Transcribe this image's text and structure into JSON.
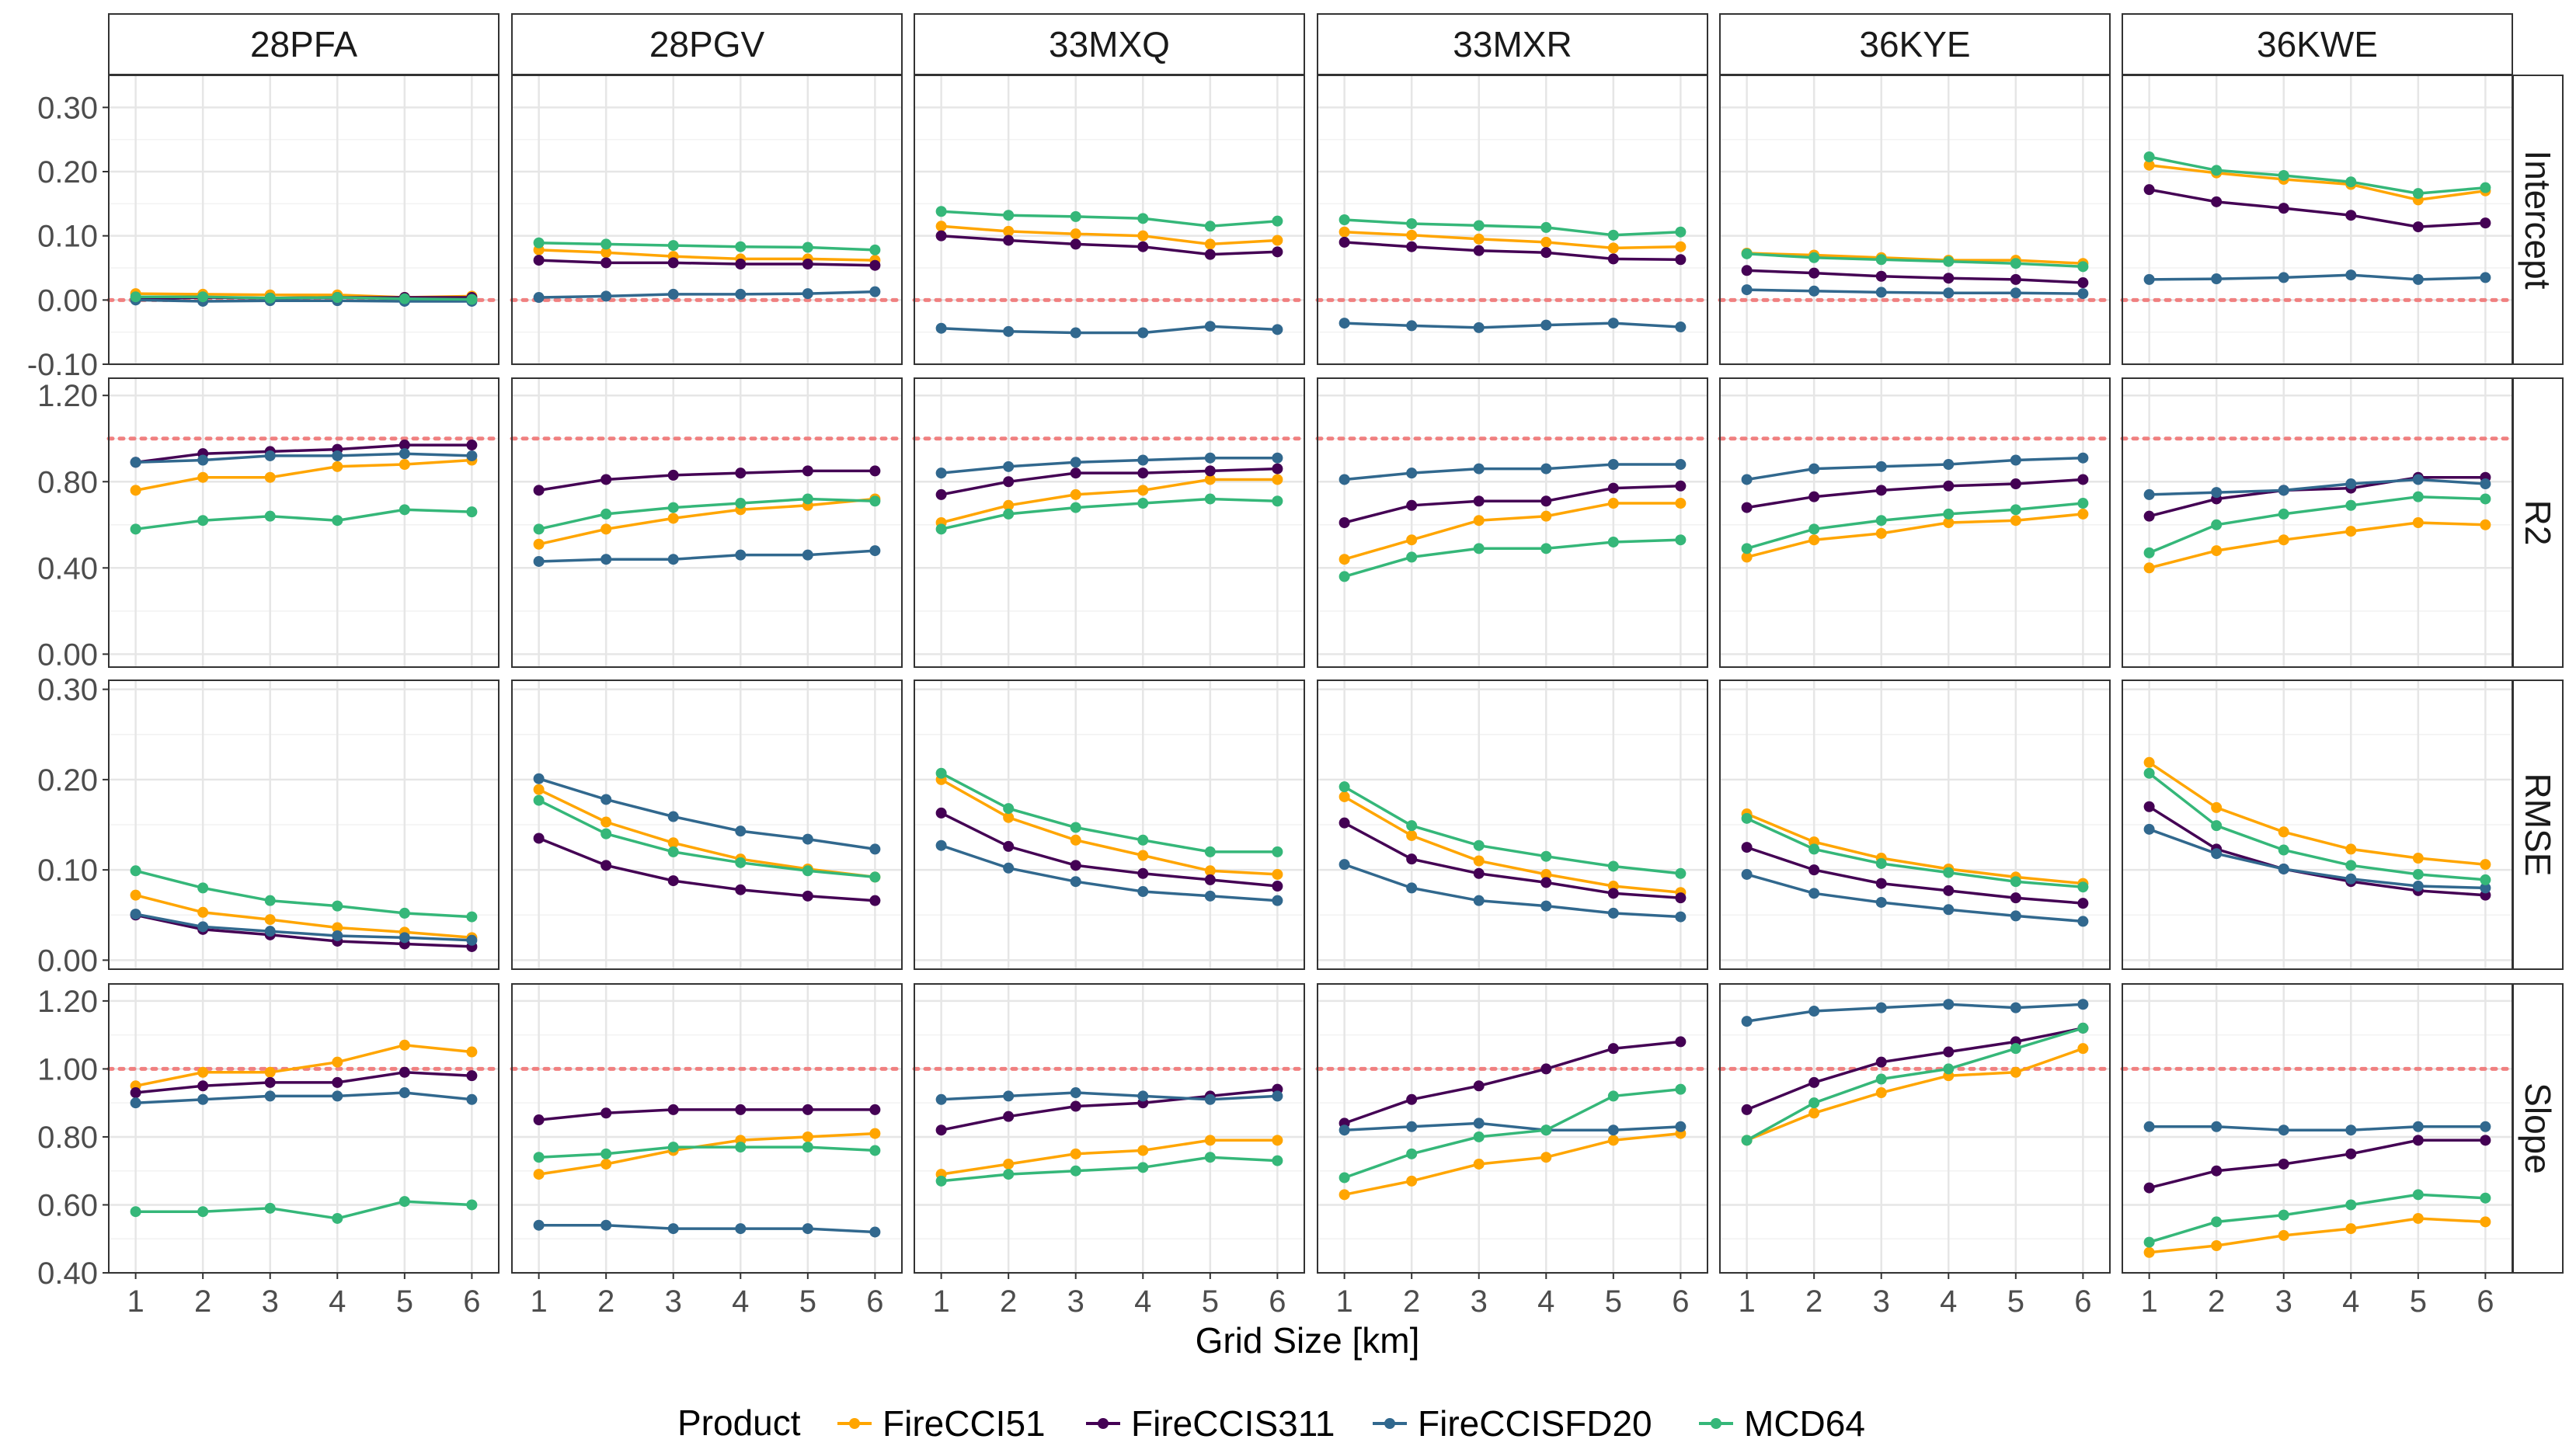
{
  "chart_data": {
    "type": "line",
    "xlabel": "Grid Size [km]",
    "x": [
      1,
      2,
      3,
      4,
      5,
      6
    ],
    "x_tick_labels": [
      "1",
      "2",
      "3",
      "4",
      "5",
      "6"
    ],
    "tiles": [
      "28PFA",
      "28PGV",
      "33MXQ",
      "33MXR",
      "36KYE",
      "36KWE"
    ],
    "metrics": [
      {
        "name": "Intercept",
        "ylim": [
          -0.1,
          0.35
        ],
        "ticks": [
          -0.1,
          0.0,
          0.1,
          0.2,
          0.3
        ],
        "tick_labels": [
          "-0.10",
          "0.00",
          "0.10",
          "0.20",
          "0.30"
        ],
        "reference": 0.0
      },
      {
        "name": "R2",
        "ylim": [
          -0.06,
          1.28
        ],
        "ticks": [
          0.0,
          0.4,
          0.8,
          1.2
        ],
        "tick_labels": [
          "0.00",
          "0.40",
          "0.80",
          "1.20"
        ],
        "reference": 1.0
      },
      {
        "name": "RMSE",
        "ylim": [
          -0.01,
          0.31
        ],
        "ticks": [
          0.0,
          0.1,
          0.2,
          0.3
        ],
        "tick_labels": [
          "0.00",
          "0.10",
          "0.20",
          "0.30"
        ],
        "reference": null
      },
      {
        "name": "Slope",
        "ylim": [
          0.4,
          1.25
        ],
        "ticks": [
          0.4,
          0.6,
          0.8,
          1.0,
          1.2
        ],
        "tick_labels": [
          "0.40",
          "0.60",
          "0.80",
          "1.00",
          "1.20"
        ],
        "reference": 1.0
      }
    ],
    "legend": {
      "title": "Product",
      "position": "bottom"
    },
    "series": [
      {
        "name": "FireCCI51",
        "color": "#ffa500"
      },
      {
        "name": "FireCCIS311",
        "color": "#440154"
      },
      {
        "name": "FireCCISFD20",
        "color": "#31688e"
      },
      {
        "name": "MCD64",
        "color": "#35b779"
      }
    ],
    "values": {
      "Intercept": {
        "28PFA": {
          "FireCCI51": [
            0.01,
            0.009,
            0.008,
            0.008,
            0.004,
            0.006
          ],
          "FireCCIS311": [
            0.002,
            0.004,
            0.003,
            0.004,
            0.004,
            0.004
          ],
          "FireCCISFD20": [
            0.0,
            -0.002,
            -0.001,
            -0.001,
            -0.002,
            -0.002
          ],
          "MCD64": [
            0.005,
            0.005,
            0.003,
            0.004,
            0.002,
            0.001
          ]
        },
        "28PGV": {
          "FireCCI51": [
            0.078,
            0.074,
            0.068,
            0.064,
            0.064,
            0.062
          ],
          "FireCCIS311": [
            0.062,
            0.058,
            0.058,
            0.056,
            0.056,
            0.054
          ],
          "FireCCISFD20": [
            0.004,
            0.006,
            0.009,
            0.009,
            0.01,
            0.013
          ],
          "MCD64": [
            0.089,
            0.087,
            0.085,
            0.083,
            0.082,
            0.078
          ]
        },
        "33MXQ": {
          "FireCCI51": [
            0.115,
            0.107,
            0.103,
            0.1,
            0.087,
            0.093
          ],
          "FireCCIS311": [
            0.1,
            0.093,
            0.087,
            0.083,
            0.071,
            0.075
          ],
          "FireCCISFD20": [
            -0.044,
            -0.049,
            -0.051,
            -0.051,
            -0.041,
            -0.046
          ],
          "MCD64": [
            0.138,
            0.132,
            0.13,
            0.127,
            0.115,
            0.123
          ]
        },
        "33MXR": {
          "FireCCI51": [
            0.106,
            0.101,
            0.095,
            0.09,
            0.081,
            0.083
          ],
          "FireCCIS311": [
            0.09,
            0.083,
            0.077,
            0.074,
            0.064,
            0.063
          ],
          "FireCCISFD20": [
            -0.036,
            -0.04,
            -0.043,
            -0.039,
            -0.036,
            -0.042
          ],
          "MCD64": [
            0.125,
            0.119,
            0.116,
            0.113,
            0.101,
            0.106
          ]
        },
        "36KYE": {
          "FireCCI51": [
            0.073,
            0.07,
            0.066,
            0.062,
            0.062,
            0.057
          ],
          "FireCCIS311": [
            0.046,
            0.042,
            0.037,
            0.034,
            0.032,
            0.027
          ],
          "FireCCISFD20": [
            0.016,
            0.014,
            0.012,
            0.011,
            0.011,
            0.01
          ],
          "MCD64": [
            0.072,
            0.066,
            0.063,
            0.06,
            0.057,
            0.052
          ]
        },
        "36KWE": {
          "FireCCI51": [
            0.21,
            0.198,
            0.188,
            0.18,
            0.156,
            0.17
          ],
          "FireCCIS311": [
            0.172,
            0.153,
            0.143,
            0.132,
            0.114,
            0.12
          ],
          "FireCCISFD20": [
            0.032,
            0.033,
            0.035,
            0.039,
            0.032,
            0.035
          ],
          "MCD64": [
            0.223,
            0.202,
            0.194,
            0.184,
            0.166,
            0.175
          ]
        }
      },
      "R2": {
        "28PFA": {
          "FireCCI51": [
            0.76,
            0.82,
            0.82,
            0.87,
            0.88,
            0.9
          ],
          "FireCCIS311": [
            0.89,
            0.93,
            0.94,
            0.95,
            0.97,
            0.97
          ],
          "FireCCISFD20": [
            0.89,
            0.9,
            0.92,
            0.92,
            0.93,
            0.92
          ],
          "MCD64": [
            0.58,
            0.62,
            0.64,
            0.62,
            0.67,
            0.66
          ]
        },
        "28PGV": {
          "FireCCI51": [
            0.51,
            0.58,
            0.63,
            0.67,
            0.69,
            0.72
          ],
          "FireCCIS311": [
            0.76,
            0.81,
            0.83,
            0.84,
            0.85,
            0.85
          ],
          "FireCCISFD20": [
            0.43,
            0.44,
            0.44,
            0.46,
            0.46,
            0.48
          ],
          "MCD64": [
            0.58,
            0.65,
            0.68,
            0.7,
            0.72,
            0.71
          ]
        },
        "33MXQ": {
          "FireCCI51": [
            0.61,
            0.69,
            0.74,
            0.76,
            0.81,
            0.81
          ],
          "FireCCIS311": [
            0.74,
            0.8,
            0.84,
            0.84,
            0.85,
            0.86
          ],
          "FireCCISFD20": [
            0.84,
            0.87,
            0.89,
            0.9,
            0.91,
            0.91
          ],
          "MCD64": [
            0.58,
            0.65,
            0.68,
            0.7,
            0.72,
            0.71
          ]
        },
        "33MXR": {
          "FireCCI51": [
            0.44,
            0.53,
            0.62,
            0.64,
            0.7,
            0.7
          ],
          "FireCCIS311": [
            0.61,
            0.69,
            0.71,
            0.71,
            0.77,
            0.78
          ],
          "FireCCISFD20": [
            0.81,
            0.84,
            0.86,
            0.86,
            0.88,
            0.88
          ],
          "MCD64": [
            0.36,
            0.45,
            0.49,
            0.49,
            0.52,
            0.53
          ]
        },
        "36KYE": {
          "FireCCI51": [
            0.45,
            0.53,
            0.56,
            0.61,
            0.62,
            0.65
          ],
          "FireCCIS311": [
            0.68,
            0.73,
            0.76,
            0.78,
            0.79,
            0.81
          ],
          "FireCCISFD20": [
            0.81,
            0.86,
            0.87,
            0.88,
            0.9,
            0.91
          ],
          "MCD64": [
            0.49,
            0.58,
            0.62,
            0.65,
            0.67,
            0.7
          ]
        },
        "36KWE": {
          "FireCCI51": [
            0.4,
            0.48,
            0.53,
            0.57,
            0.61,
            0.6
          ],
          "FireCCIS311": [
            0.64,
            0.72,
            0.76,
            0.77,
            0.82,
            0.82
          ],
          "FireCCISFD20": [
            0.74,
            0.75,
            0.76,
            0.79,
            0.81,
            0.79
          ],
          "MCD64": [
            0.47,
            0.6,
            0.65,
            0.69,
            0.73,
            0.72
          ]
        }
      },
      "RMSE": {
        "28PFA": {
          "FireCCI51": [
            0.072,
            0.053,
            0.045,
            0.036,
            0.031,
            0.025
          ],
          "FireCCIS311": [
            0.05,
            0.034,
            0.028,
            0.021,
            0.018,
            0.015
          ],
          "FireCCISFD20": [
            0.051,
            0.037,
            0.032,
            0.027,
            0.025,
            0.022
          ],
          "MCD64": [
            0.099,
            0.08,
            0.066,
            0.06,
            0.052,
            0.048
          ]
        },
        "28PGV": {
          "FireCCI51": [
            0.189,
            0.153,
            0.13,
            0.112,
            0.101,
            0.092
          ],
          "FireCCIS311": [
            0.135,
            0.105,
            0.088,
            0.078,
            0.071,
            0.066
          ],
          "FireCCISFD20": [
            0.201,
            0.178,
            0.159,
            0.143,
            0.134,
            0.123
          ],
          "MCD64": [
            0.177,
            0.14,
            0.12,
            0.108,
            0.099,
            0.092
          ]
        },
        "33MXQ": {
          "FireCCI51": [
            0.2,
            0.158,
            0.133,
            0.116,
            0.099,
            0.095
          ],
          "FireCCIS311": [
            0.163,
            0.126,
            0.105,
            0.096,
            0.089,
            0.082
          ],
          "FireCCISFD20": [
            0.127,
            0.102,
            0.087,
            0.076,
            0.071,
            0.066
          ],
          "MCD64": [
            0.207,
            0.168,
            0.147,
            0.133,
            0.12,
            0.12
          ]
        },
        "33MXR": {
          "FireCCI51": [
            0.181,
            0.138,
            0.11,
            0.095,
            0.082,
            0.075
          ],
          "FireCCIS311": [
            0.152,
            0.112,
            0.096,
            0.086,
            0.074,
            0.069
          ],
          "FireCCISFD20": [
            0.106,
            0.08,
            0.066,
            0.06,
            0.052,
            0.048
          ],
          "MCD64": [
            0.192,
            0.149,
            0.127,
            0.115,
            0.104,
            0.096
          ]
        },
        "36KYE": {
          "FireCCI51": [
            0.162,
            0.131,
            0.113,
            0.101,
            0.092,
            0.085
          ],
          "FireCCIS311": [
            0.125,
            0.1,
            0.085,
            0.077,
            0.069,
            0.063
          ],
          "FireCCISFD20": [
            0.095,
            0.074,
            0.064,
            0.056,
            0.049,
            0.043
          ],
          "MCD64": [
            0.157,
            0.123,
            0.107,
            0.097,
            0.087,
            0.081
          ]
        },
        "36KWE": {
          "FireCCI51": [
            0.219,
            0.169,
            0.142,
            0.123,
            0.113,
            0.106
          ],
          "FireCCIS311": [
            0.17,
            0.123,
            0.101,
            0.087,
            0.077,
            0.072
          ],
          "FireCCISFD20": [
            0.145,
            0.118,
            0.101,
            0.09,
            0.082,
            0.08
          ],
          "MCD64": [
            0.207,
            0.149,
            0.122,
            0.105,
            0.095,
            0.089
          ]
        }
      },
      "Slope": {
        "28PFA": {
          "FireCCI51": [
            0.95,
            0.99,
            0.99,
            1.02,
            1.07,
            1.05
          ],
          "FireCCIS311": [
            0.93,
            0.95,
            0.96,
            0.96,
            0.99,
            0.98
          ],
          "FireCCISFD20": [
            0.9,
            0.91,
            0.92,
            0.92,
            0.93,
            0.91
          ],
          "MCD64": [
            0.58,
            0.58,
            0.59,
            0.56,
            0.61,
            0.6
          ]
        },
        "28PGV": {
          "FireCCI51": [
            0.69,
            0.72,
            0.76,
            0.79,
            0.8,
            0.81
          ],
          "FireCCIS311": [
            0.85,
            0.87,
            0.88,
            0.88,
            0.88,
            0.88
          ],
          "FireCCISFD20": [
            0.54,
            0.54,
            0.53,
            0.53,
            0.53,
            0.52
          ],
          "MCD64": [
            0.74,
            0.75,
            0.77,
            0.77,
            0.77,
            0.76
          ]
        },
        "33MXQ": {
          "FireCCI51": [
            0.69,
            0.72,
            0.75,
            0.76,
            0.79,
            0.79
          ],
          "FireCCIS311": [
            0.82,
            0.86,
            0.89,
            0.9,
            0.92,
            0.94
          ],
          "FireCCISFD20": [
            0.91,
            0.92,
            0.93,
            0.92,
            0.91,
            0.92
          ],
          "MCD64": [
            0.67,
            0.69,
            0.7,
            0.71,
            0.74,
            0.73
          ]
        },
        "33MXR": {
          "FireCCI51": [
            0.63,
            0.67,
            0.72,
            0.74,
            0.79,
            0.81
          ],
          "FireCCIS311": [
            0.84,
            0.91,
            0.95,
            1.0,
            1.06,
            1.08
          ],
          "FireCCISFD20": [
            0.82,
            0.83,
            0.84,
            0.82,
            0.82,
            0.83
          ],
          "MCD64": [
            0.68,
            0.75,
            0.8,
            0.82,
            0.92,
            0.94
          ]
        },
        "36KYE": {
          "FireCCI51": [
            0.79,
            0.87,
            0.93,
            0.98,
            0.99,
            1.06
          ],
          "FireCCIS311": [
            0.88,
            0.96,
            1.02,
            1.05,
            1.08,
            1.12
          ],
          "FireCCISFD20": [
            1.14,
            1.17,
            1.18,
            1.19,
            1.18,
            1.19
          ],
          "MCD64": [
            0.79,
            0.9,
            0.97,
            1.0,
            1.06,
            1.12
          ]
        },
        "36KWE": {
          "FireCCI51": [
            0.46,
            0.48,
            0.51,
            0.53,
            0.56,
            0.55
          ],
          "FireCCIS311": [
            0.65,
            0.7,
            0.72,
            0.75,
            0.79,
            0.79
          ],
          "FireCCISFD20": [
            0.83,
            0.83,
            0.82,
            0.82,
            0.83,
            0.83
          ],
          "MCD64": [
            0.49,
            0.55,
            0.57,
            0.6,
            0.63,
            0.62
          ]
        }
      }
    }
  }
}
